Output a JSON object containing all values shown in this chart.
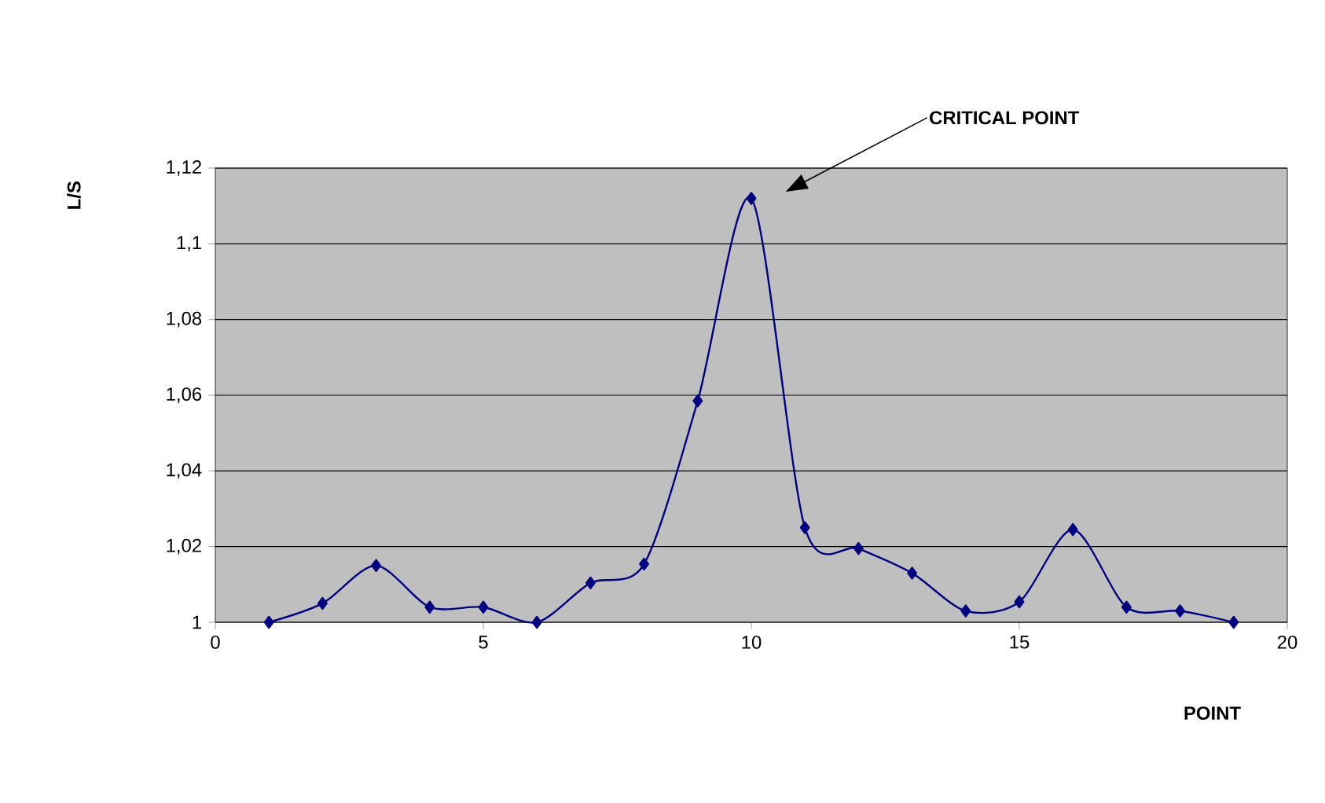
{
  "chart_data": {
    "type": "line",
    "xlabel": "POINT",
    "ylabel": "L/S",
    "x": [
      1,
      2,
      3,
      4,
      5,
      6,
      7,
      8,
      9,
      10,
      11,
      12,
      13,
      14,
      15,
      16,
      17,
      18,
      19
    ],
    "series": [
      {
        "color": "#000080",
        "values": [
          1.0,
          1.005,
          1.015,
          1.004,
          1.004,
          1.0,
          1.0104,
          1.0154,
          1.0585,
          1.112,
          1.025,
          1.0195,
          1.013,
          1.003,
          1.0054,
          1.0245,
          1.004,
          1.003,
          1.0
        ]
      }
    ],
    "xlim": [
      0,
      20
    ],
    "xticks": [
      0,
      5,
      10,
      15,
      20
    ],
    "ylim": [
      1,
      1.12
    ],
    "yticks": [
      1,
      {
        "value": 1.02,
        "label": "1,02"
      },
      {
        "value": 1.04,
        "label": "1,04"
      },
      {
        "value": 1.06,
        "label": "1,06"
      },
      {
        "value": 1.08,
        "label": "1,08"
      },
      {
        "value": 1.1,
        "label": "1,1"
      },
      {
        "value": 1.12,
        "label": "1,12"
      }
    ],
    "grid": "y",
    "marker": "diamond",
    "line_style": "solid",
    "annotations": [
      "CRITICAL POINT"
    ]
  }
}
